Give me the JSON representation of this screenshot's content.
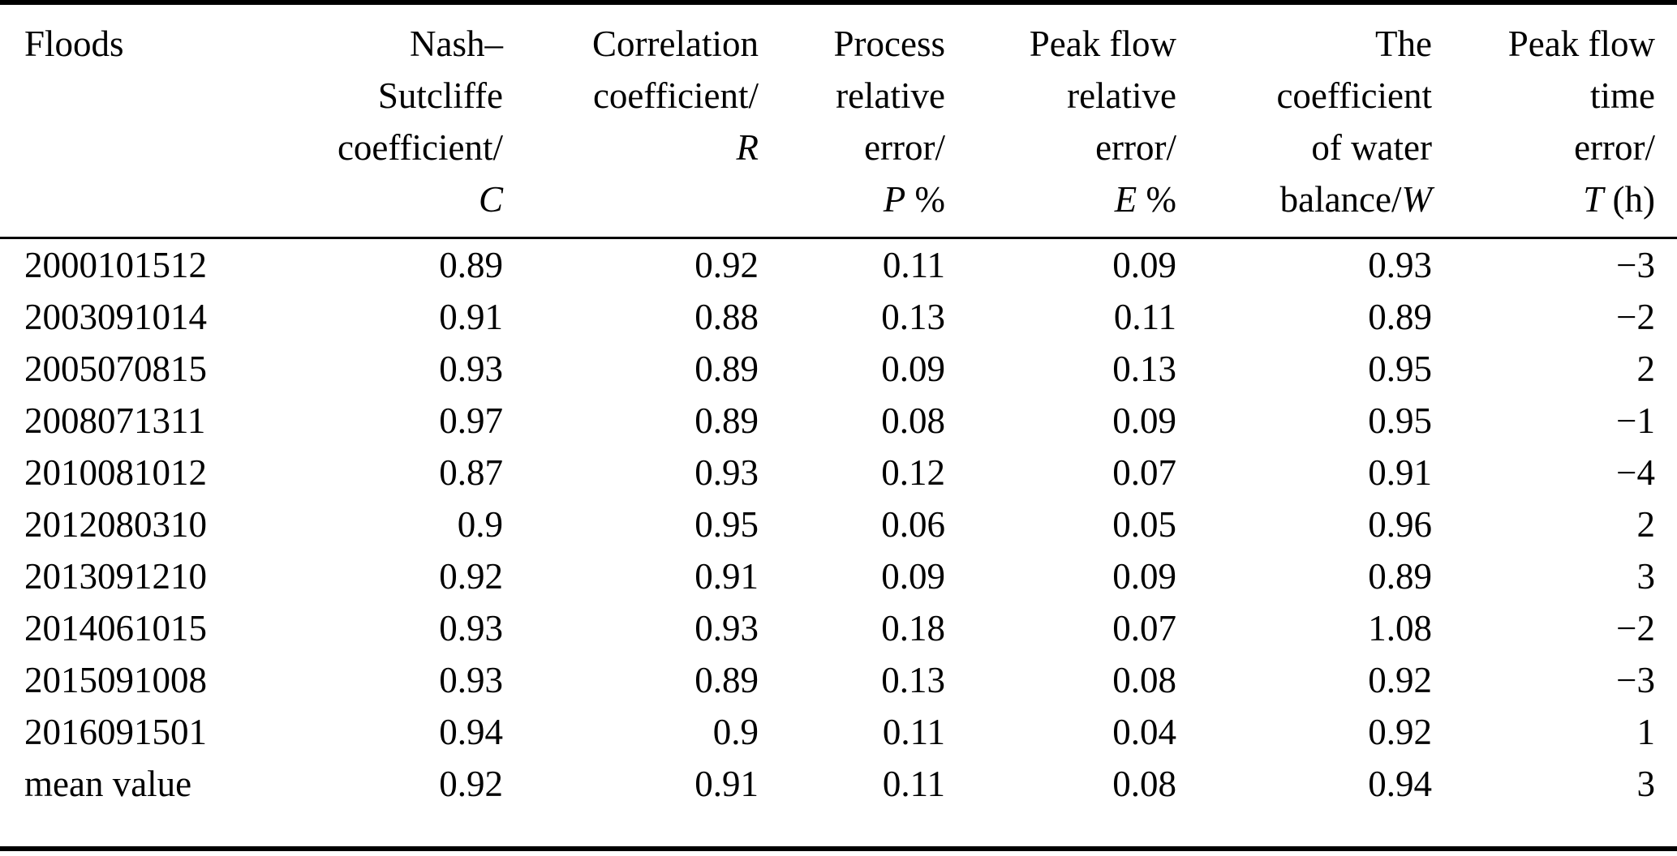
{
  "colors": {
    "text": "#000000",
    "background": "#ffffff",
    "rule": "#000000"
  },
  "table": {
    "name": "flood-simulation-evaluation-metrics",
    "columns": [
      {
        "id": "floods",
        "lines": [
          "Floods"
        ],
        "last_prefix": "",
        "symbol": "",
        "symbol_suffix": ""
      },
      {
        "id": "nash-sutcliffe",
        "lines": [
          "Nash–",
          "Sutcliffe",
          "coefficient/"
        ],
        "last_prefix": "",
        "symbol": "C",
        "symbol_suffix": ""
      },
      {
        "id": "correlation",
        "lines": [
          "Correlation",
          "coefficient/"
        ],
        "last_prefix": "",
        "symbol": "R",
        "symbol_suffix": ""
      },
      {
        "id": "process-relative-error",
        "lines": [
          "Process",
          "relative",
          "error/"
        ],
        "last_prefix": "",
        "symbol": "P",
        "symbol_suffix": " %"
      },
      {
        "id": "peak-flow-relative-error",
        "lines": [
          "Peak flow",
          "relative",
          "error/"
        ],
        "last_prefix": "",
        "symbol": "E",
        "symbol_suffix": " %"
      },
      {
        "id": "water-balance",
        "lines": [
          "The",
          "coefficient",
          "of water"
        ],
        "last_prefix": "balance/",
        "symbol": "W",
        "symbol_suffix": ""
      },
      {
        "id": "peak-flow-time-error",
        "lines": [
          "Peak flow",
          "time",
          "error/"
        ],
        "last_prefix": "",
        "symbol": "T",
        "symbol_suffix": " (h)"
      }
    ],
    "rows": [
      [
        "2000101512",
        "0.89",
        "0.92",
        "0.11",
        "0.09",
        "0.93",
        "−3"
      ],
      [
        "2003091014",
        "0.91",
        "0.88",
        "0.13",
        "0.11",
        "0.89",
        "−2"
      ],
      [
        "2005070815",
        "0.93",
        "0.89",
        "0.09",
        "0.13",
        "0.95",
        "2"
      ],
      [
        "2008071311",
        "0.97",
        "0.89",
        "0.08",
        "0.09",
        "0.95",
        "−1"
      ],
      [
        "2010081012",
        "0.87",
        "0.93",
        "0.12",
        "0.07",
        "0.91",
        "−4"
      ],
      [
        "2012080310",
        "0.9",
        "0.95",
        "0.06",
        "0.05",
        "0.96",
        "2"
      ],
      [
        "2013091210",
        "0.92",
        "0.91",
        "0.09",
        "0.09",
        "0.89",
        "3"
      ],
      [
        "2014061015",
        "0.93",
        "0.93",
        "0.18",
        "0.07",
        "1.08",
        "−2"
      ],
      [
        "2015091008",
        "0.93",
        "0.89",
        "0.13",
        "0.08",
        "0.92",
        "−3"
      ],
      [
        "2016091501",
        "0.94",
        "0.9",
        "0.11",
        "0.04",
        "0.92",
        "1"
      ],
      [
        "mean value",
        "0.92",
        "0.91",
        "0.11",
        "0.08",
        "0.94",
        "3"
      ]
    ]
  }
}
